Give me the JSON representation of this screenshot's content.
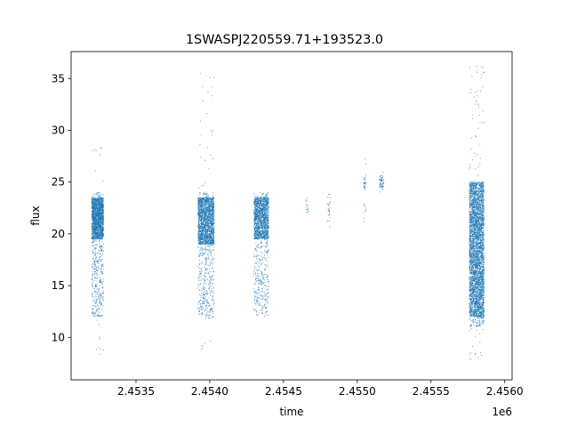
{
  "chart_data": {
    "type": "scatter",
    "title": "1SWASPJ220559.71+193523.0",
    "xlabel": "time",
    "ylabel": "flux",
    "x_offset_label": "1e6",
    "xlim": [
      2.45306,
      2.45605
    ],
    "ylim": [
      5.9,
      37.6
    ],
    "x_ticks": [
      2.4535,
      2.454,
      2.4545,
      2.455,
      2.4555,
      2.456
    ],
    "x_tick_labels": [
      "2.4535",
      "2.4540",
      "2.4545",
      "2.4550",
      "2.4555",
      "2.4560"
    ],
    "y_ticks": [
      10,
      15,
      20,
      25,
      30,
      35
    ],
    "y_tick_labels": [
      "10",
      "15",
      "20",
      "25",
      "30",
      "35"
    ],
    "grid": false,
    "legend": "none",
    "marker_color": "#1f77b4",
    "series": [
      {
        "clusters": [
          {
            "x_range": [
              2.4532,
              2.45328
            ],
            "core_range": [
              19.5,
              23.5
            ],
            "spread_range": [
              12.0,
              24.0
            ],
            "outlier_range": [
              8.0,
              28.3
            ],
            "density": 2200
          },
          {
            "x_range": [
              2.45392,
              2.45403
            ],
            "core_range": [
              19.0,
              23.5
            ],
            "spread_range": [
              11.8,
              24.0
            ],
            "outlier_range": [
              8.0,
              35.7
            ],
            "density": 2400
          },
          {
            "x_range": [
              2.4543,
              2.4544
            ],
            "core_range": [
              19.5,
              23.5
            ],
            "spread_range": [
              12.0,
              24.0
            ],
            "outlier_range": [
              12.0,
              24.6
            ],
            "density": 1800
          },
          {
            "x_range": [
              2.45465,
              2.45467
            ],
            "core_range": [
              22.0,
              23.5
            ],
            "spread_range": [
              21.8,
              23.8
            ],
            "outlier_range": [
              21.8,
              23.8
            ],
            "density": 15
          },
          {
            "x_range": [
              2.4548,
              2.45482
            ],
            "core_range": [
              21.0,
              24.0
            ],
            "spread_range": [
              20.6,
              25.0
            ],
            "outlier_range": [
              20.6,
              25.0
            ],
            "density": 30
          },
          {
            "x_range": [
              2.45504,
              2.45506
            ],
            "core_range": [
              24.2,
              25.5
            ],
            "spread_range": [
              20.3,
              27.4
            ],
            "outlier_range": [
              20.3,
              27.4
            ],
            "density": 40
          },
          {
            "x_range": [
              2.45515,
              2.45518
            ],
            "core_range": [
              24.5,
              25.5
            ],
            "spread_range": [
              24.0,
              26.0
            ],
            "outlier_range": [
              24.0,
              26.0
            ],
            "density": 60
          },
          {
            "x_range": [
              2.45576,
              2.45586
            ],
            "core_range": [
              12.0,
              25.0
            ],
            "spread_range": [
              11.0,
              25.0
            ],
            "outlier_range": [
              7.5,
              36.2
            ],
            "density": 4200
          }
        ]
      }
    ]
  }
}
